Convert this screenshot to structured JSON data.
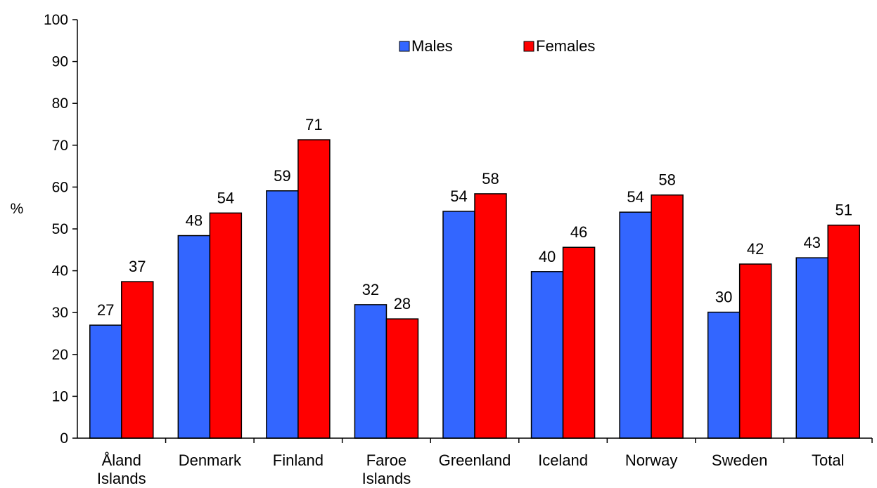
{
  "chart_data": {
    "type": "bar",
    "title": "",
    "xlabel": "",
    "ylabel": "%",
    "ylim": [
      0,
      100
    ],
    "yticks": [
      0,
      10,
      20,
      30,
      40,
      50,
      60,
      70,
      80,
      90,
      100
    ],
    "grid": false,
    "legend_position": "top-center",
    "categories": [
      [
        "Åland",
        "Islands"
      ],
      [
        "Denmark"
      ],
      [
        "Finland"
      ],
      [
        "Faroe",
        "Islands"
      ],
      [
        "Greenland"
      ],
      [
        "Iceland"
      ],
      [
        "Norway"
      ],
      [
        "Sweden"
      ],
      [
        "Total"
      ]
    ],
    "series": [
      {
        "name": "Males",
        "color": "#3366ff",
        "values": [
          27,
          48.4,
          59.1,
          31.9,
          54.2,
          39.8,
          54,
          30.1,
          43.1
        ],
        "labels": [
          "27",
          "48",
          "59",
          "32",
          "54",
          "40",
          "54",
          "30",
          "43"
        ]
      },
      {
        "name": "Females",
        "color": "#ff0000",
        "values": [
          37.4,
          53.8,
          71.3,
          28.5,
          58.4,
          45.6,
          58.1,
          41.6,
          50.9
        ],
        "labels": [
          "37",
          "54",
          "71",
          "28",
          "58",
          "46",
          "58",
          "42",
          "51"
        ]
      }
    ]
  }
}
